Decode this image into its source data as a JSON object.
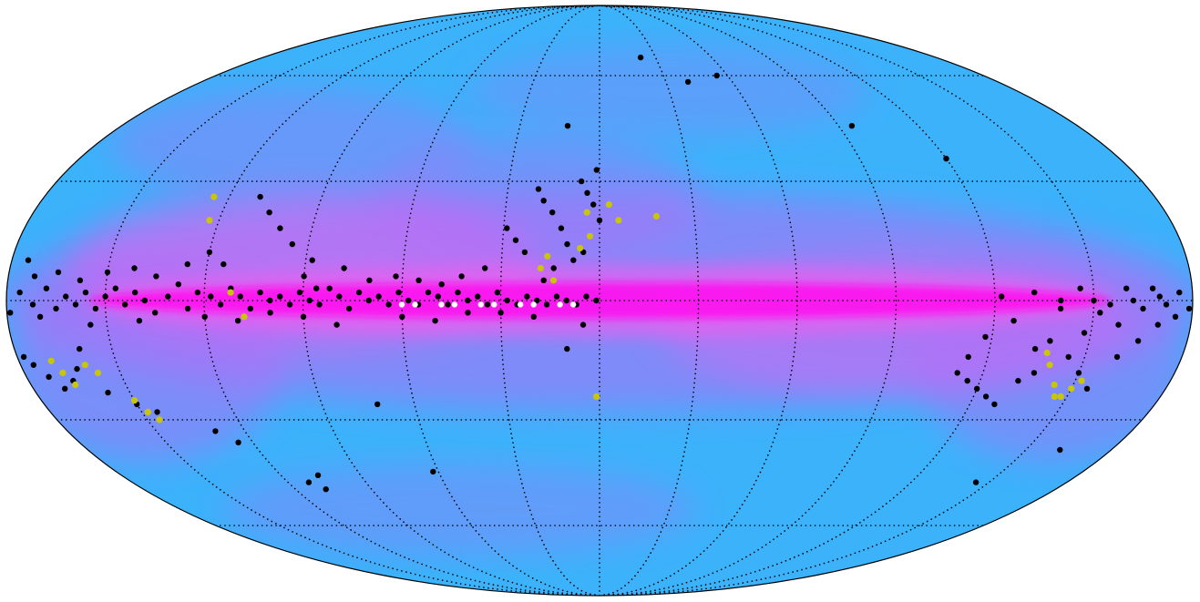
{
  "map": {
    "projection": "mollweide",
    "colors": {
      "background_outer": "#ffffff",
      "sky_blue": "#3cb2fb",
      "sky_light_blue": "#52bdf6",
      "dust_violet": "#b66cf7",
      "dust_magenta": "#f05df0",
      "galactic_plane": "#ff10f0",
      "graticule": "#000000",
      "source_black": "#000000",
      "source_yellow": "#c9c60a",
      "source_white": "#ffffff"
    },
    "graticule": {
      "parallels_deg": [
        -60,
        -30,
        0,
        30,
        60
      ],
      "meridians_deg": [
        -150,
        -120,
        -90,
        -60,
        -30,
        0,
        30,
        60,
        90,
        120,
        150
      ]
    },
    "sources": {
      "black": [
        [
          179,
          -3
        ],
        [
          176,
          2
        ],
        [
          172,
          -1
        ],
        [
          168,
          3
        ],
        [
          165,
          -2
        ],
        [
          162,
          1
        ],
        [
          159,
          -1
        ],
        [
          156,
          2
        ],
        [
          153,
          -2
        ],
        [
          150,
          1
        ],
        [
          147,
          3
        ],
        [
          144,
          -1
        ],
        [
          141,
          2
        ],
        [
          138,
          0
        ],
        [
          135,
          -3
        ],
        [
          131,
          1
        ],
        [
          128,
          4
        ],
        [
          125,
          -2
        ],
        [
          122,
          2
        ],
        [
          118,
          1
        ],
        [
          115,
          -1
        ],
        [
          112,
          3
        ],
        [
          109,
          1
        ],
        [
          106,
          -2
        ],
        [
          103,
          2
        ],
        [
          100,
          0
        ],
        [
          97,
          1
        ],
        [
          94,
          -1
        ],
        [
          91,
          2
        ],
        [
          88,
          0
        ],
        [
          85,
          -1
        ],
        [
          82,
          3
        ],
        [
          79,
          1
        ],
        [
          76,
          -2
        ],
        [
          73,
          2
        ],
        [
          70,
          0
        ],
        [
          67,
          1
        ],
        [
          64,
          -1
        ],
        [
          61,
          2
        ],
        [
          58,
          0
        ],
        [
          55,
          -1
        ],
        [
          52,
          2
        ],
        [
          49,
          1
        ],
        [
          46,
          -1
        ],
        [
          43,
          2
        ],
        [
          40,
          0
        ],
        [
          37,
          1
        ],
        [
          34,
          -1
        ],
        [
          31,
          2
        ],
        [
          28,
          0
        ],
        [
          25,
          -1
        ],
        [
          22,
          1
        ],
        [
          19,
          0
        ],
        [
          16,
          -1
        ],
        [
          13,
          1
        ],
        [
          10,
          0
        ],
        [
          7,
          -1
        ],
        [
          4,
          1
        ],
        [
          1,
          0
        ],
        [
          8,
          10
        ],
        [
          10,
          14
        ],
        [
          12,
          18
        ],
        [
          15,
          22
        ],
        [
          18,
          25
        ],
        [
          20,
          28
        ],
        [
          6,
          30
        ],
        [
          4,
          27
        ],
        [
          2,
          24
        ],
        [
          1,
          33
        ],
        [
          0,
          20
        ],
        [
          3,
          16
        ],
        [
          5,
          12
        ],
        [
          23,
          12
        ],
        [
          26,
          15
        ],
        [
          29,
          18
        ],
        [
          14,
          8
        ],
        [
          17,
          5
        ],
        [
          35,
          8
        ],
        [
          42,
          6
        ],
        [
          48,
          4
        ],
        [
          55,
          5
        ],
        [
          62,
          6
        ],
        [
          70,
          5
        ],
        [
          78,
          8
        ],
        [
          88,
          10
        ],
        [
          95,
          14
        ],
        [
          100,
          18
        ],
        [
          105,
          22
        ],
        [
          110,
          26
        ],
        [
          90,
          6
        ],
        [
          86,
          3
        ],
        [
          115,
          9
        ],
        [
          120,
          12
        ],
        [
          126,
          9
        ],
        [
          135,
          6
        ],
        [
          142,
          8
        ],
        [
          150,
          7
        ],
        [
          158,
          5
        ],
        [
          165,
          7
        ],
        [
          172,
          6
        ],
        [
          175,
          10
        ],
        [
          160,
          -12
        ],
        [
          163,
          -17
        ],
        [
          166,
          -20
        ],
        [
          170,
          -22
        ],
        [
          173,
          -19
        ],
        [
          176,
          -16
        ],
        [
          178,
          -14
        ],
        [
          157,
          -23
        ],
        [
          150,
          -26
        ],
        [
          145,
          -28
        ],
        [
          130,
          -33
        ],
        [
          125,
          -36
        ],
        [
          112,
          -47
        ],
        [
          108,
          -49
        ],
        [
          106,
          -45
        ],
        [
          72,
          -26
        ],
        [
          62,
          -44
        ],
        [
          10,
          -12
        ],
        [
          5,
          -6
        ],
        [
          20,
          -4
        ],
        [
          30,
          -3
        ],
        [
          40,
          -3
        ],
        [
          50,
          -5
        ],
        [
          60,
          -4
        ],
        [
          80,
          -6
        ],
        [
          90,
          -4
        ],
        [
          100,
          -3
        ],
        [
          110,
          -5
        ],
        [
          120,
          -4
        ],
        [
          140,
          -5
        ],
        [
          155,
          -6
        ],
        [
          170,
          -4
        ],
        [
          12,
          45
        ],
        [
          -22,
          66
        ],
        [
          -40,
          58
        ],
        [
          -55,
          60
        ],
        [
          -95,
          45
        ],
        [
          -120,
          36
        ],
        [
          -170,
          1
        ],
        [
          -165,
          -2
        ],
        [
          -160,
          3
        ],
        [
          -155,
          -1
        ],
        [
          -150,
          0
        ],
        [
          -140,
          -2
        ],
        [
          -132,
          2
        ],
        [
          -126,
          -5
        ],
        [
          -122,
          1
        ],
        [
          -118,
          -9
        ],
        [
          -114,
          -14
        ],
        [
          -112,
          -18
        ],
        [
          -116,
          -20
        ],
        [
          -120,
          -22
        ],
        [
          -124,
          -24
        ],
        [
          -128,
          -26
        ],
        [
          -132,
          -20
        ],
        [
          -136,
          -18
        ],
        [
          -140,
          -16
        ],
        [
          -145,
          -14
        ],
        [
          -150,
          -18
        ],
        [
          -155,
          -22
        ],
        [
          -160,
          -14
        ],
        [
          -165,
          -10
        ],
        [
          -170,
          -6
        ],
        [
          -175,
          -4
        ],
        [
          -179,
          -2
        ],
        [
          -140,
          0
        ],
        [
          -146,
          3
        ],
        [
          -152,
          -3
        ],
        [
          -168,
          3
        ],
        [
          -172,
          -1
        ],
        [
          -176,
          2
        ],
        [
          -162,
          0
        ],
        [
          -158,
          -6
        ],
        [
          -148,
          -8
        ],
        [
          -138,
          -10
        ],
        [
          -134,
          -12
        ],
        [
          -145,
          -47
        ],
        [
          -162,
          -38
        ]
      ],
      "yellow": [
        [
          170,
          -15
        ],
        [
          168,
          -18
        ],
        [
          166,
          -21
        ],
        [
          160,
          -16
        ],
        [
          157,
          -18
        ],
        [
          150,
          -25
        ],
        [
          148,
          -28
        ],
        [
          146,
          -30
        ],
        [
          125,
          26
        ],
        [
          123,
          20
        ],
        [
          112,
          2
        ],
        [
          108,
          -4
        ],
        [
          18,
          8
        ],
        [
          14,
          5
        ],
        [
          16,
          11
        ],
        [
          3,
          16
        ],
        [
          6,
          13
        ],
        [
          -3,
          24
        ],
        [
          -6,
          20
        ],
        [
          -18,
          21
        ],
        [
          1,
          -24
        ],
        [
          4,
          22
        ],
        [
          -152,
          -20
        ],
        [
          -150,
          -22
        ],
        [
          -148,
          -24
        ],
        [
          -146,
          -24
        ],
        [
          -144,
          -21
        ],
        [
          -140,
          -16
        ],
        [
          -138,
          -13
        ]
      ],
      "white": [
        [
          60,
          -1
        ],
        [
          56,
          -1
        ],
        [
          48,
          -1
        ],
        [
          44,
          -1
        ],
        [
          36,
          -1
        ],
        [
          32,
          -1
        ],
        [
          24,
          -1
        ],
        [
          20,
          -1
        ],
        [
          12,
          -1
        ],
        [
          8,
          -1
        ]
      ]
    }
  }
}
